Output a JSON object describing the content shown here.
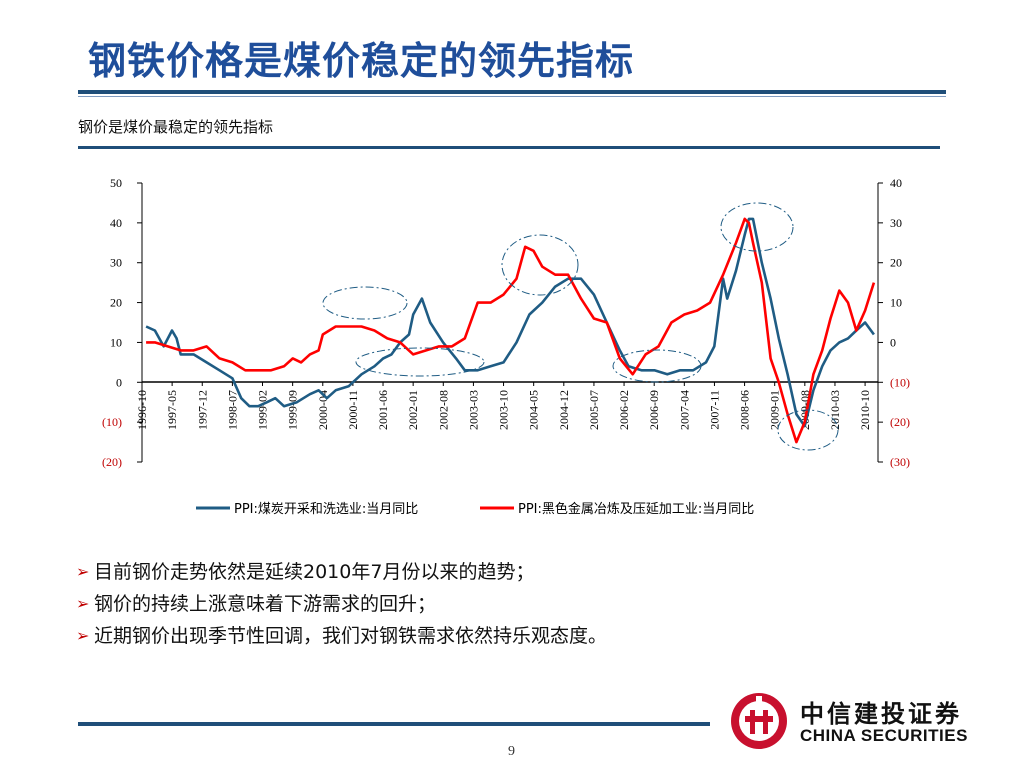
{
  "slide": {
    "title": "钢铁价格是煤价稳定的领先指标",
    "page_number": "9"
  },
  "chart_title": "钢价是煤价最稳定的领先指标",
  "bullets": [
    "目前钢价走势依然是延续2010年7月份以来的趋势；",
    "钢价的持续上涨意味着下游需求的回升；",
    "近期钢价出现季节性回调，我们对钢铁需求依然持乐观态度。"
  ],
  "logo": {
    "name_zh": "中信建投证券",
    "name_en": "CHINA SECURITIES"
  },
  "colors": {
    "accent": "#1f4e79",
    "title": "#1f4e9a",
    "coal_series": "#1f5c84",
    "steel_series": "#ff0000",
    "negative_label": "#c00000"
  },
  "chart_data": {
    "type": "line",
    "x_tick_labels": [
      "1996-10",
      "1997-05",
      "1997-12",
      "1998-07",
      "1999-02",
      "1999-09",
      "2000-04",
      "2000-11",
      "2001-06",
      "2002-01",
      "2002-08",
      "2003-03",
      "2003-10",
      "2004-05",
      "2004-12",
      "2005-07",
      "2006-02",
      "2006-09",
      "2007-04",
      "2007-11",
      "2008-06",
      "2009-01",
      "2009-08",
      "2010-03",
      "2010-10"
    ],
    "y_left": {
      "ticks": [
        "50",
        "40",
        "30",
        "20",
        "10",
        "0",
        "(10)",
        "(20)"
      ],
      "range": [
        -20,
        50
      ]
    },
    "y_right": {
      "ticks": [
        "40",
        "30",
        "20",
        "10",
        "0",
        "(10)",
        "(20)",
        "(30)"
      ],
      "range": [
        -30,
        40
      ]
    },
    "legend_position": "bottom",
    "annotations": "dashed ellipses highlight turning points",
    "series": [
      {
        "name": "PPI:煤炭开采和洗选业:当月同比",
        "axis": "left",
        "points": [
          [
            1996.83,
            14
          ],
          [
            1997.0,
            13
          ],
          [
            1997.17,
            9
          ],
          [
            1997.33,
            13
          ],
          [
            1997.42,
            11
          ],
          [
            1997.5,
            7
          ],
          [
            1997.75,
            7
          ],
          [
            1998.0,
            5
          ],
          [
            1998.25,
            3
          ],
          [
            1998.5,
            1
          ],
          [
            1998.67,
            -4
          ],
          [
            1998.83,
            -6
          ],
          [
            1999.0,
            -6
          ],
          [
            1999.17,
            -5
          ],
          [
            1999.33,
            -4
          ],
          [
            1999.5,
            -6
          ],
          [
            1999.75,
            -5
          ],
          [
            2000.0,
            -3
          ],
          [
            2000.17,
            -2
          ],
          [
            2000.33,
            -4
          ],
          [
            2000.5,
            -2
          ],
          [
            2000.75,
            -1
          ],
          [
            2001.0,
            2
          ],
          [
            2001.25,
            4
          ],
          [
            2001.42,
            6
          ],
          [
            2001.58,
            7
          ],
          [
            2001.75,
            10
          ],
          [
            2001.92,
            12
          ],
          [
            2002.0,
            17
          ],
          [
            2002.17,
            21
          ],
          [
            2002.33,
            15
          ],
          [
            2002.58,
            10
          ],
          [
            2002.83,
            6
          ],
          [
            2003.0,
            3
          ],
          [
            2003.25,
            3
          ],
          [
            2003.5,
            4
          ],
          [
            2003.75,
            5
          ],
          [
            2004.0,
            10
          ],
          [
            2004.25,
            17
          ],
          [
            2004.5,
            20
          ],
          [
            2004.75,
            24
          ],
          [
            2005.0,
            26
          ],
          [
            2005.25,
            26
          ],
          [
            2005.5,
            22
          ],
          [
            2005.75,
            15
          ],
          [
            2006.0,
            8
          ],
          [
            2006.17,
            4
          ],
          [
            2006.42,
            3
          ],
          [
            2006.67,
            3
          ],
          [
            2006.92,
            2
          ],
          [
            2007.17,
            3
          ],
          [
            2007.42,
            3
          ],
          [
            2007.67,
            5
          ],
          [
            2007.83,
            9
          ],
          [
            2008.0,
            26
          ],
          [
            2008.08,
            21
          ],
          [
            2008.25,
            28
          ],
          [
            2008.42,
            37
          ],
          [
            2008.5,
            41
          ],
          [
            2008.58,
            41
          ],
          [
            2008.75,
            30
          ],
          [
            2008.92,
            21
          ],
          [
            2009.08,
            11
          ],
          [
            2009.25,
            2
          ],
          [
            2009.42,
            -8
          ],
          [
            2009.58,
            -11
          ],
          [
            2009.75,
            -2
          ],
          [
            2009.92,
            4
          ],
          [
            2010.08,
            8
          ],
          [
            2010.25,
            10
          ],
          [
            2010.42,
            11
          ],
          [
            2010.58,
            13
          ],
          [
            2010.75,
            15
          ],
          [
            2010.92,
            12
          ]
        ]
      },
      {
        "name": "PPI:黑色金属冶炼及压延加工业:当月同比",
        "axis": "right",
        "points": [
          [
            1996.83,
            0
          ],
          [
            1997.0,
            0
          ],
          [
            1997.25,
            -1
          ],
          [
            1997.5,
            -2
          ],
          [
            1997.75,
            -2
          ],
          [
            1998.0,
            -1
          ],
          [
            1998.25,
            -4
          ],
          [
            1998.5,
            -5
          ],
          [
            1998.75,
            -7
          ],
          [
            1999.0,
            -7
          ],
          [
            1999.25,
            -7
          ],
          [
            1999.5,
            -6
          ],
          [
            1999.67,
            -4
          ],
          [
            1999.83,
            -5
          ],
          [
            2000.0,
            -3
          ],
          [
            2000.17,
            -2
          ],
          [
            2000.25,
            2
          ],
          [
            2000.5,
            4
          ],
          [
            2000.75,
            4
          ],
          [
            2001.0,
            4
          ],
          [
            2001.25,
            3
          ],
          [
            2001.5,
            1
          ],
          [
            2001.75,
            0
          ],
          [
            2002.0,
            -3
          ],
          [
            2002.25,
            -2
          ],
          [
            2002.5,
            -1
          ],
          [
            2002.75,
            -1
          ],
          [
            2003.0,
            1
          ],
          [
            2003.25,
            10
          ],
          [
            2003.5,
            10
          ],
          [
            2003.75,
            12
          ],
          [
            2004.0,
            16
          ],
          [
            2004.17,
            24
          ],
          [
            2004.33,
            23
          ],
          [
            2004.5,
            19
          ],
          [
            2004.75,
            17
          ],
          [
            2005.0,
            17
          ],
          [
            2005.25,
            11
          ],
          [
            2005.5,
            6
          ],
          [
            2005.75,
            5
          ],
          [
            2006.0,
            -4
          ],
          [
            2006.25,
            -8
          ],
          [
            2006.5,
            -3
          ],
          [
            2006.75,
            -1
          ],
          [
            2007.0,
            5
          ],
          [
            2007.25,
            7
          ],
          [
            2007.5,
            8
          ],
          [
            2007.75,
            10
          ],
          [
            2008.0,
            17
          ],
          [
            2008.25,
            25
          ],
          [
            2008.42,
            31
          ],
          [
            2008.5,
            30
          ],
          [
            2008.58,
            25
          ],
          [
            2008.75,
            15
          ],
          [
            2008.92,
            -4
          ],
          [
            2009.08,
            -10
          ],
          [
            2009.25,
            -18
          ],
          [
            2009.42,
            -25
          ],
          [
            2009.58,
            -20
          ],
          [
            2009.75,
            -8
          ],
          [
            2009.92,
            -2
          ],
          [
            2010.08,
            6
          ],
          [
            2010.25,
            13
          ],
          [
            2010.42,
            10
          ],
          [
            2010.58,
            3
          ],
          [
            2010.75,
            8
          ],
          [
            2010.92,
            15
          ]
        ]
      }
    ]
  }
}
